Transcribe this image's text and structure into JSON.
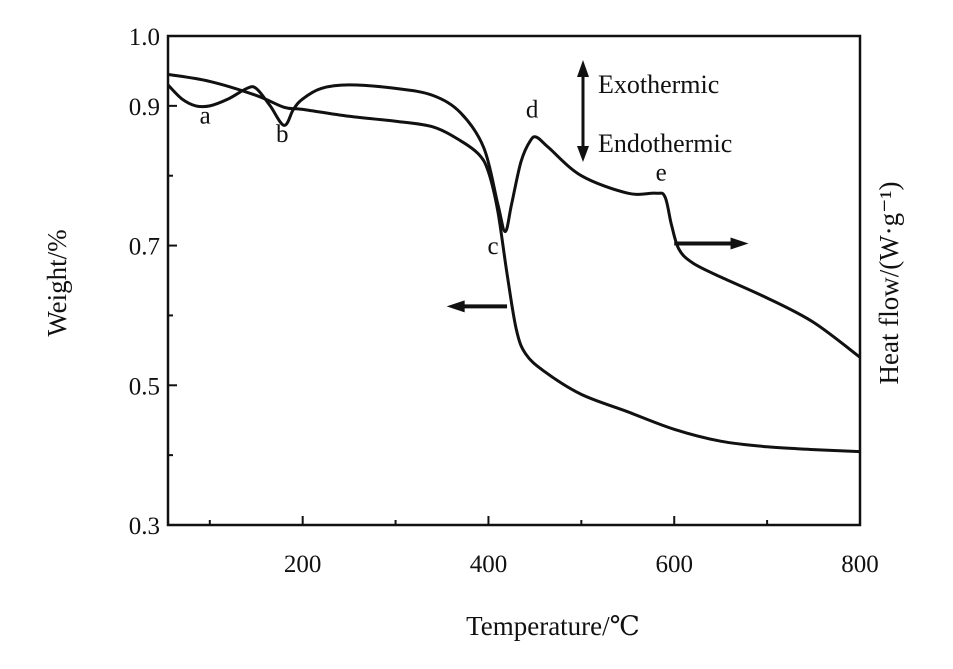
{
  "chart_data": {
    "type": "line",
    "xlabel": "Temperature/℃",
    "ylabel": "Weight/%",
    "y2label": "Heat flow/(W·g⁻¹)",
    "xlim": [
      55,
      800
    ],
    "ylim": [
      0.3,
      1.0
    ],
    "x_ticks": [
      200,
      400,
      600,
      800
    ],
    "y_ticks": [
      0.3,
      0.5,
      0.7,
      0.9,
      1.0
    ],
    "y_tick_labels": [
      "0.3",
      "0.5",
      "0.7",
      "0.9",
      "1.0"
    ],
    "x_tick_labels": [
      "200",
      "400",
      "600",
      "800"
    ],
    "grid": false,
    "legend": {
      "exo_label": "Exothermic",
      "endo_label": "Endothermic",
      "placement": "top-right"
    },
    "series": [
      {
        "axis": "left",
        "x": [
          55,
          100,
          150,
          180,
          200,
          250,
          300,
          340,
          370,
          390,
          400,
          410,
          420,
          430,
          440,
          460,
          500,
          550,
          600,
          650,
          700,
          750,
          800
        ],
        "y": [
          0.945,
          0.935,
          0.915,
          0.898,
          0.895,
          0.885,
          0.878,
          0.87,
          0.85,
          0.83,
          0.805,
          0.75,
          0.66,
          0.58,
          0.545,
          0.52,
          0.487,
          0.462,
          0.437,
          0.42,
          0.412,
          0.408,
          0.405
        ]
      },
      {
        "axis": "right",
        "x": [
          55,
          70,
          85,
          100,
          120,
          140,
          150,
          165,
          180,
          190,
          200,
          220,
          250,
          300,
          340,
          370,
          395,
          410,
          418,
          425,
          435,
          445,
          452,
          465,
          500,
          550,
          580,
          590,
          597,
          605,
          620,
          650,
          700,
          750,
          800
        ],
        "y": [
          0.93,
          0.91,
          0.9,
          0.9,
          0.91,
          0.925,
          0.925,
          0.9,
          0.872,
          0.895,
          0.91,
          0.925,
          0.93,
          0.925,
          0.915,
          0.89,
          0.84,
          0.76,
          0.72,
          0.76,
          0.82,
          0.85,
          0.855,
          0.84,
          0.8,
          0.775,
          0.775,
          0.77,
          0.73,
          0.695,
          0.675,
          0.655,
          0.625,
          0.59,
          0.54
        ]
      }
    ],
    "annotations": [
      {
        "text": "a",
        "x": 95,
        "y": 0.875
      },
      {
        "text": "b",
        "x": 178,
        "y": 0.848
      },
      {
        "text": "c",
        "x": 405,
        "y": 0.688
      },
      {
        "text": "d",
        "x": 447,
        "y": 0.883
      },
      {
        "text": "e",
        "x": 586,
        "y": 0.793
      }
    ],
    "arrows": [
      {
        "direction": "left",
        "x_from": 420,
        "x_to": 355,
        "y": 0.613
      },
      {
        "direction": "right",
        "x_from": 600,
        "x_to": 680,
        "y": 0.703
      }
    ],
    "colors": {
      "line": "#111111",
      "axes": "#111111",
      "background": "#ffffff"
    }
  }
}
